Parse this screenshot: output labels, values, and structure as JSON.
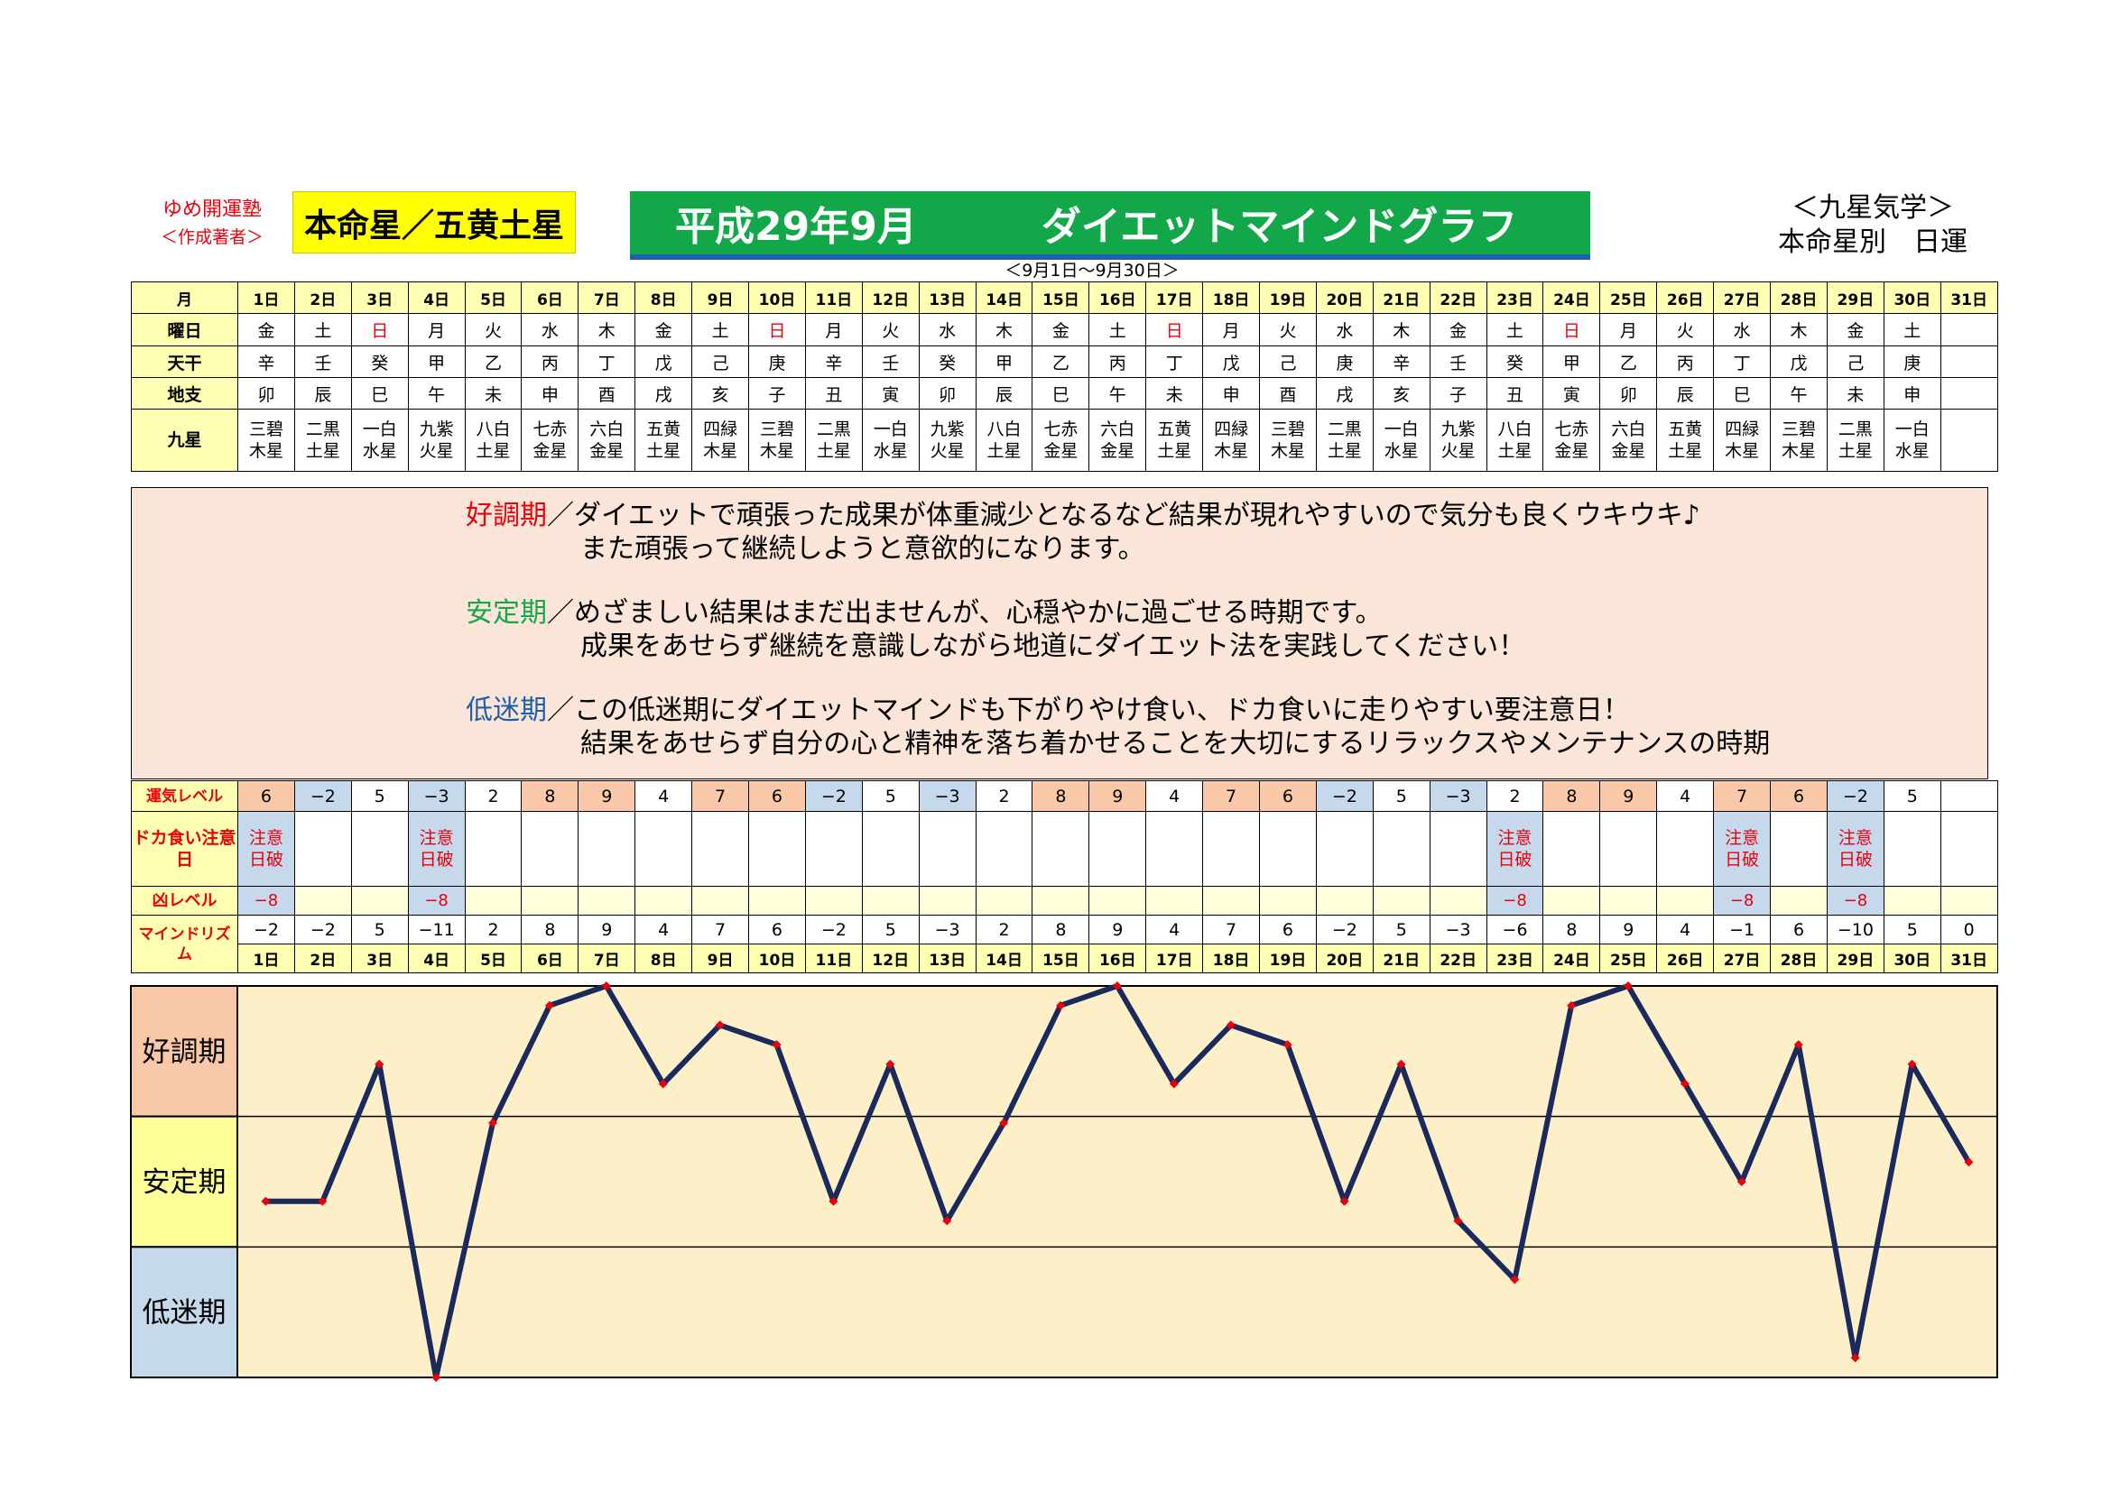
{
  "header": {
    "brand": "ゆめ開運塾",
    "brand_sub": "＜作成著者＞",
    "main_star": "本命星／五黄土星",
    "title_left": "平成29年9月",
    "title_right": "ダイエットマインドグラフ",
    "school": "＜九星気学＞",
    "school_sub": "本命星別　日運",
    "date_range": "＜9月1日～9月30日＞"
  },
  "row_labels": {
    "month": "月",
    "weekday": "曜日",
    "stem": "天干",
    "branch": "地支",
    "star": "九星",
    "luck": "運気レベル",
    "overeat": "ドカ食い注意日",
    "bad": "凶レベル",
    "mind": "マインドリズム"
  },
  "days": [
    "1日",
    "2日",
    "3日",
    "4日",
    "5日",
    "6日",
    "7日",
    "8日",
    "9日",
    "10日",
    "11日",
    "12日",
    "13日",
    "14日",
    "15日",
    "16日",
    "17日",
    "18日",
    "19日",
    "20日",
    "21日",
    "22日",
    "23日",
    "24日",
    "25日",
    "26日",
    "27日",
    "28日",
    "29日",
    "30日",
    "31日"
  ],
  "weekdays": [
    "金",
    "土",
    "日",
    "月",
    "火",
    "水",
    "木",
    "金",
    "土",
    "日",
    "月",
    "火",
    "水",
    "木",
    "金",
    "土",
    "日",
    "月",
    "火",
    "水",
    "木",
    "金",
    "土",
    "日",
    "月",
    "火",
    "水",
    "木",
    "金",
    "土",
    ""
  ],
  "stems": [
    "辛",
    "壬",
    "癸",
    "甲",
    "乙",
    "丙",
    "丁",
    "戊",
    "己",
    "庚",
    "辛",
    "壬",
    "癸",
    "甲",
    "乙",
    "丙",
    "丁",
    "戊",
    "己",
    "庚",
    "辛",
    "壬",
    "癸",
    "甲",
    "乙",
    "丙",
    "丁",
    "戊",
    "己",
    "庚",
    ""
  ],
  "branches": [
    "卯",
    "辰",
    "巳",
    "午",
    "未",
    "申",
    "酉",
    "戌",
    "亥",
    "子",
    "丑",
    "寅",
    "卯",
    "辰",
    "巳",
    "午",
    "未",
    "申",
    "酉",
    "戌",
    "亥",
    "子",
    "丑",
    "寅",
    "卯",
    "辰",
    "巳",
    "午",
    "未",
    "申",
    ""
  ],
  "stars": [
    [
      "三碧",
      "木星"
    ],
    [
      "二黒",
      "土星"
    ],
    [
      "一白",
      "水星"
    ],
    [
      "九紫",
      "火星"
    ],
    [
      "八白",
      "土星"
    ],
    [
      "七赤",
      "金星"
    ],
    [
      "六白",
      "金星"
    ],
    [
      "五黄",
      "土星"
    ],
    [
      "四緑",
      "木星"
    ],
    [
      "三碧",
      "木星"
    ],
    [
      "二黒",
      "土星"
    ],
    [
      "一白",
      "水星"
    ],
    [
      "九紫",
      "火星"
    ],
    [
      "八白",
      "土星"
    ],
    [
      "七赤",
      "金星"
    ],
    [
      "六白",
      "金星"
    ],
    [
      "五黄",
      "土星"
    ],
    [
      "四緑",
      "木星"
    ],
    [
      "三碧",
      "木星"
    ],
    [
      "二黒",
      "土星"
    ],
    [
      "一白",
      "水星"
    ],
    [
      "九紫",
      "火星"
    ],
    [
      "八白",
      "土星"
    ],
    [
      "七赤",
      "金星"
    ],
    [
      "六白",
      "金星"
    ],
    [
      "五黄",
      "土星"
    ],
    [
      "四緑",
      "木星"
    ],
    [
      "三碧",
      "木星"
    ],
    [
      "二黒",
      "土星"
    ],
    [
      "一白",
      "水星"
    ],
    [
      "",
      ""
    ]
  ],
  "descriptions": [
    {
      "label": "好調期",
      "line1": "／ダイエットで頑張った成果が体重減少となるなど結果が現れやすいので気分も良くウキウキ♪",
      "line2": "また頑張って継続しようと意欲的になります。",
      "color": "#e8000a"
    },
    {
      "label": "安定期",
      "line1": "／めざましい結果はまだ出ませんが、心穏やかに過ごせる時期です。",
      "line2": "成果をあせらず継続を意識しながら地道にダイエット法を実践してください！",
      "color": "#12a84a"
    },
    {
      "label": "低迷期",
      "line1": "／この低迷期にダイエットマインドも下がりやけ食い、ドカ食いに走りやすい要注意日！",
      "line2": "結果をあせらず自分の心と精神を落ち着かせることを大切にするリラックスやメンテナンスの時期",
      "color": "#1f5fa8"
    }
  ],
  "luck_levels": [
    "6",
    "−2",
    "5",
    "−3",
    "2",
    "8",
    "9",
    "4",
    "7",
    "6",
    "−2",
    "5",
    "−3",
    "2",
    "8",
    "9",
    "4",
    "7",
    "6",
    "−2",
    "5",
    "−3",
    "2",
    "8",
    "9",
    "4",
    "7",
    "6",
    "−2",
    "5",
    ""
  ],
  "overeat": [
    "注意日破",
    "",
    "",
    "注意日破",
    "",
    "",
    "",
    "",
    "",
    "",
    "",
    "",
    "",
    "",
    "",
    "",
    "",
    "",
    "",
    "",
    "",
    "",
    "注意日破",
    "",
    "",
    "",
    "注意日破",
    "",
    "注意日破",
    "",
    ""
  ],
  "bad_levels": [
    "−8",
    "",
    "",
    "−8",
    "",
    "",
    "",
    "",
    "",
    "",
    "",
    "",
    "",
    "",
    "",
    "",
    "",
    "",
    "",
    "",
    "",
    "",
    "−8",
    "",
    "",
    "",
    "−8",
    "",
    "−8",
    "",
    ""
  ],
  "mind_values": [
    "−2",
    "−2",
    "5",
    "−11",
    "2",
    "8",
    "9",
    "4",
    "7",
    "6",
    "−2",
    "5",
    "−3",
    "2",
    "8",
    "9",
    "4",
    "7",
    "6",
    "−2",
    "5",
    "−3",
    "−6",
    "8",
    "9",
    "4",
    "−1",
    "6",
    "−10",
    "5",
    "0"
  ],
  "chart_data": {
    "type": "line",
    "x": [
      "1日",
      "2日",
      "3日",
      "4日",
      "5日",
      "6日",
      "7日",
      "8日",
      "9日",
      "10日",
      "11日",
      "12日",
      "13日",
      "14日",
      "15日",
      "16日",
      "17日",
      "18日",
      "19日",
      "20日",
      "21日",
      "22日",
      "23日",
      "24日",
      "25日",
      "26日",
      "27日",
      "28日",
      "29日",
      "30日",
      "31日"
    ],
    "series": [
      {
        "values": [
          -2,
          -2,
          5,
          -11,
          2,
          8,
          9,
          4,
          7,
          6,
          -2,
          5,
          -3,
          2,
          8,
          9,
          4,
          7,
          6,
          -2,
          5,
          -3,
          -6,
          8,
          9,
          4,
          -1,
          6,
          -10,
          5,
          0
        ]
      }
    ],
    "ylim": [
      -11,
      9
    ],
    "zones": [
      "好調期",
      "安定期",
      "低迷期"
    ],
    "grid": "horizontal zone lines",
    "line_color": "#1a2a5c",
    "marker_color": "#e8000a",
    "zone_colors": {
      "good": "#f8c8a8",
      "stable": "#ffff99",
      "low": "#c6d9ec",
      "plot": "#fdefc8"
    }
  },
  "colors": {
    "positive_luck": "#f8c8a8",
    "negative_luck": "#c6d9ec",
    "header_yellow": "#ffffb2",
    "title_green": "#12a84a"
  }
}
